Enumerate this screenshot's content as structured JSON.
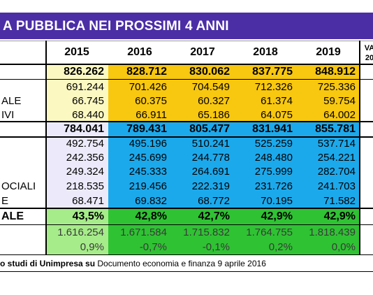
{
  "header": {
    "title": "A PUBBLICA NEI PROSSIMI 4 ANNI"
  },
  "table": {
    "columns": [
      "2015",
      "2016",
      "2017",
      "2018",
      "2019"
    ],
    "last_column": [
      "VA",
      "20"
    ],
    "rows": [
      {
        "values": [
          "826.262",
          "828.712",
          "830.062",
          "837.775",
          "848.912"
        ]
      },
      {
        "values": [
          "691.244",
          "701.426",
          "704.549",
          "712.326",
          "725.336"
        ]
      },
      {
        "label": "ALE",
        "values": [
          "66.745",
          "60.375",
          "60.327",
          "61.374",
          "59.754"
        ]
      },
      {
        "label": "IVI",
        "values": [
          "68.440",
          "66.911",
          "65.186",
          "64.075",
          "64.002"
        ]
      },
      {
        "values": [
          "784.041",
          "789.431",
          "805.477",
          "831.941",
          "855.781"
        ]
      },
      {
        "values": [
          "492.754",
          "495.196",
          "510.241",
          "525.259",
          "537.714"
        ]
      },
      {
        "values": [
          "242.356",
          "245.699",
          "244.778",
          "248.480",
          "254.221"
        ]
      },
      {
        "values": [
          "249.324",
          "245.333",
          "264.691",
          "275.999",
          "282.704"
        ]
      },
      {
        "label": "OCIALI",
        "values": [
          "218.535",
          "219.456",
          "222.319",
          "231.726",
          "241.703"
        ]
      },
      {
        "label": "E",
        "values": [
          "68.471",
          "69.832",
          "68.772",
          "70.195",
          "71.582"
        ]
      },
      {
        "label": "ALE",
        "values": [
          "43,5%",
          "42,8%",
          "42,7%",
          "42,9%",
          "42,9%"
        ]
      },
      {
        "values": [
          "1.616.254",
          "1.671.584",
          "1.715.832",
          "1.764.755",
          "1.818.439"
        ]
      },
      {
        "values": [
          "0,9%",
          "-0,7%",
          "-0,1%",
          "0,2%",
          "0,0%"
        ]
      }
    ]
  },
  "footer": {
    "source_bold": "o studi di Unimpresa su",
    "source": "Documento economia e finanza 9 aprile 2016"
  }
}
